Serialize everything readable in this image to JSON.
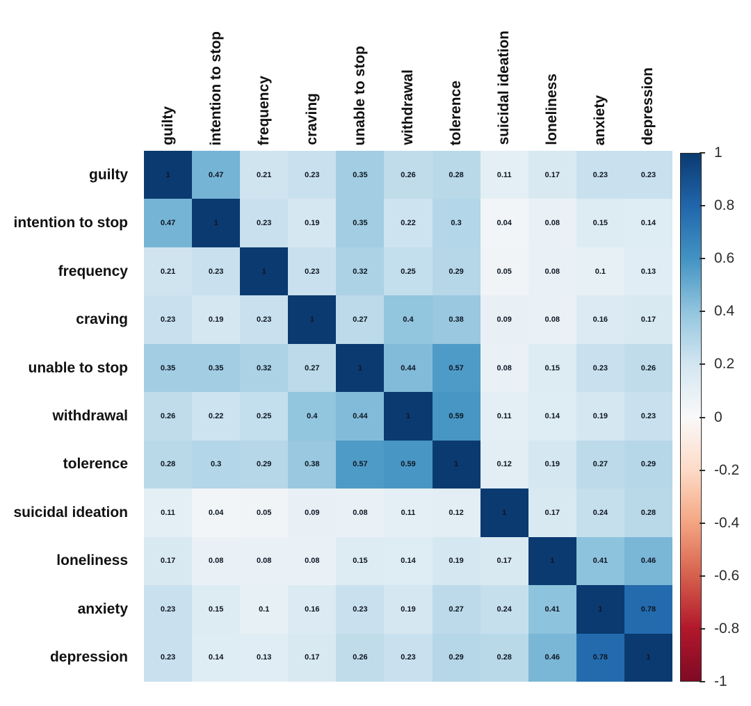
{
  "chart_data": {
    "type": "heatmap",
    "title": "",
    "variables": [
      "guilty",
      "intention to stop",
      "frequency",
      "craving",
      "unable to stop",
      "withdrawal",
      "tolerence",
      "suicidal ideation",
      "loneliness",
      "anxiety",
      "depression"
    ],
    "matrix": [
      [
        1,
        0.47,
        0.21,
        0.23,
        0.35,
        0.26,
        0.28,
        0.11,
        0.17,
        0.23,
        0.23
      ],
      [
        0.47,
        1,
        0.23,
        0.19,
        0.35,
        0.22,
        0.3,
        0.04,
        0.08,
        0.15,
        0.14
      ],
      [
        0.21,
        0.23,
        1,
        0.23,
        0.32,
        0.25,
        0.29,
        0.05,
        0.08,
        0.1,
        0.13
      ],
      [
        0.23,
        0.19,
        0.23,
        1,
        0.27,
        0.4,
        0.38,
        0.09,
        0.08,
        0.16,
        0.17
      ],
      [
        0.35,
        0.35,
        0.32,
        0.27,
        1,
        0.44,
        0.57,
        0.08,
        0.15,
        0.23,
        0.26
      ],
      [
        0.26,
        0.22,
        0.25,
        0.4,
        0.44,
        1,
        0.59,
        0.11,
        0.14,
        0.19,
        0.23
      ],
      [
        0.28,
        0.3,
        0.29,
        0.38,
        0.57,
        0.59,
        1,
        0.12,
        0.19,
        0.27,
        0.29
      ],
      [
        0.11,
        0.04,
        0.05,
        0.09,
        0.08,
        0.11,
        0.12,
        1,
        0.17,
        0.24,
        0.28
      ],
      [
        0.17,
        0.08,
        0.08,
        0.08,
        0.15,
        0.14,
        0.19,
        0.17,
        1,
        0.41,
        0.46
      ],
      [
        0.23,
        0.15,
        0.1,
        0.16,
        0.23,
        0.19,
        0.27,
        0.24,
        0.41,
        1,
        0.78
      ],
      [
        0.23,
        0.14,
        0.13,
        0.17,
        0.26,
        0.23,
        0.29,
        0.28,
        0.46,
        0.78,
        1
      ]
    ],
    "value_range": [
      -1,
      1
    ],
    "grid": false,
    "legend_position": "right",
    "colorbar": {
      "ticks": [
        1,
        0.8,
        0.6,
        0.4,
        0.2,
        0,
        -0.2,
        -0.4,
        -0.6,
        -0.8,
        -1
      ],
      "stop_values": [
        1,
        0.8,
        0.6,
        0.4,
        0.2,
        0,
        -0.2,
        -0.4,
        -0.6,
        -0.8,
        -1
      ],
      "stop_colors": [
        "#0a3a70",
        "#2166ac",
        "#4393c3",
        "#92c5de",
        "#d3e6f1",
        "#f9f9f9",
        "#fddbc7",
        "#f4a582",
        "#d6604d",
        "#b2182b",
        "#7f0a24"
      ]
    },
    "cell_label_color": "#0d1522",
    "label_color": "#111111"
  }
}
